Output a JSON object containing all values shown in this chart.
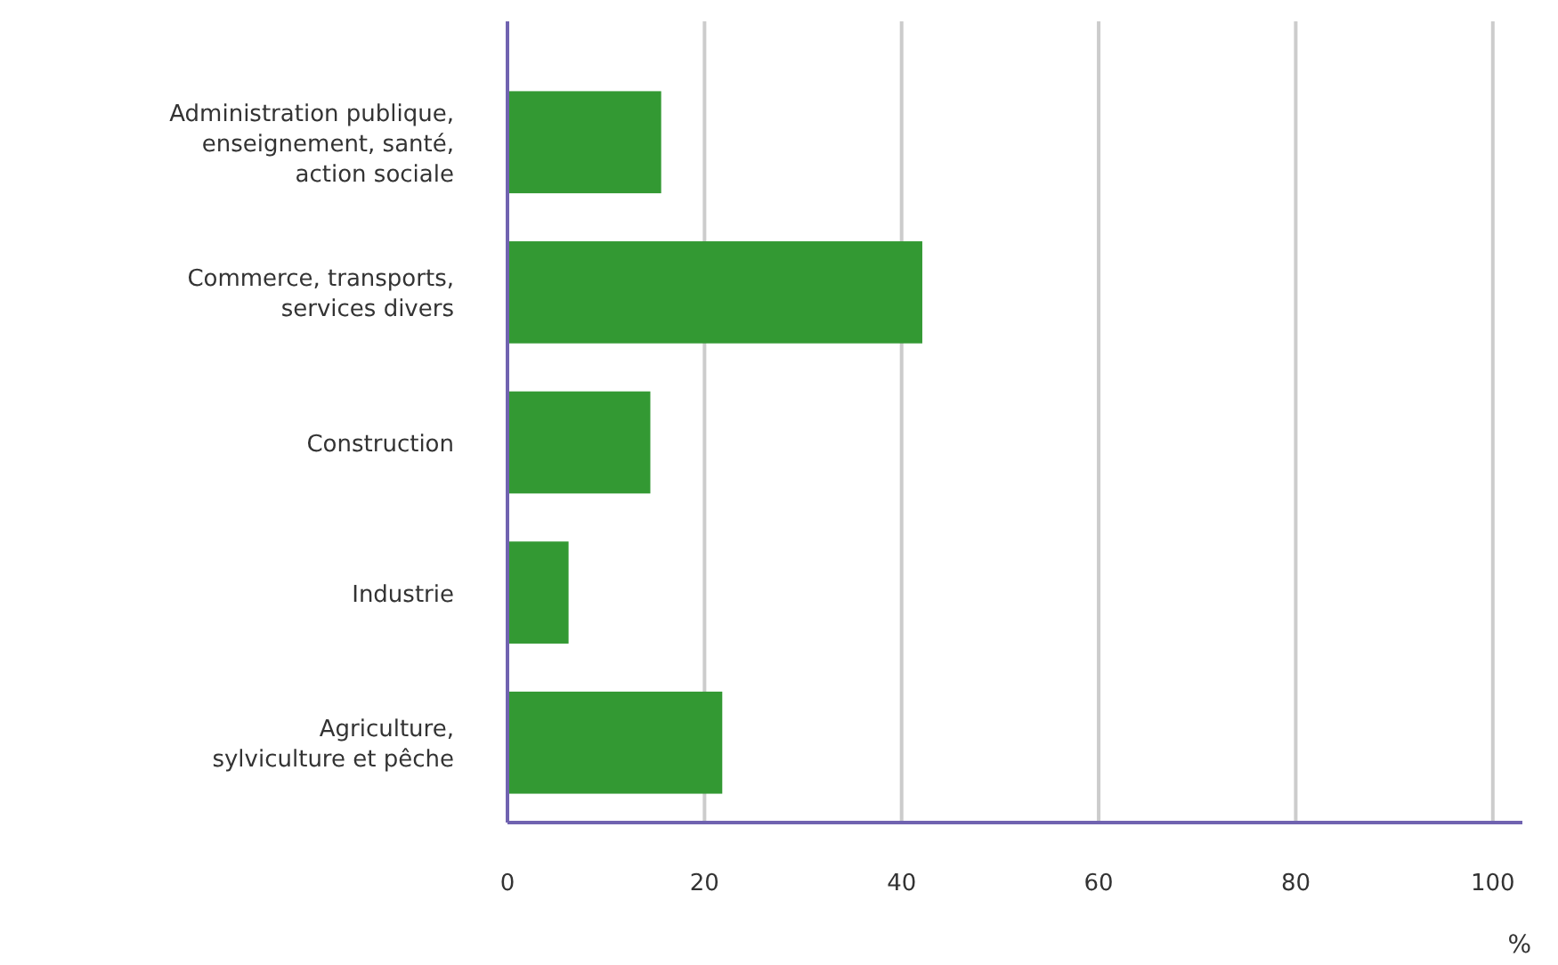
{
  "chart_data": {
    "type": "bar",
    "orientation": "horizontal",
    "categories": [
      "Administration publique, enseignement, santé, action sociale",
      "Commerce, transports, services divers",
      "Construction",
      "Industrie",
      "Agriculture, sylviculture et pêche"
    ],
    "values": [
      15.6,
      42.1,
      14.5,
      6.2,
      21.8
    ],
    "color": "#339933",
    "xlim": [
      0,
      103
    ],
    "xticks": [
      0,
      20,
      40,
      60,
      80,
      100
    ],
    "xlabel": "%",
    "grid": "x"
  }
}
